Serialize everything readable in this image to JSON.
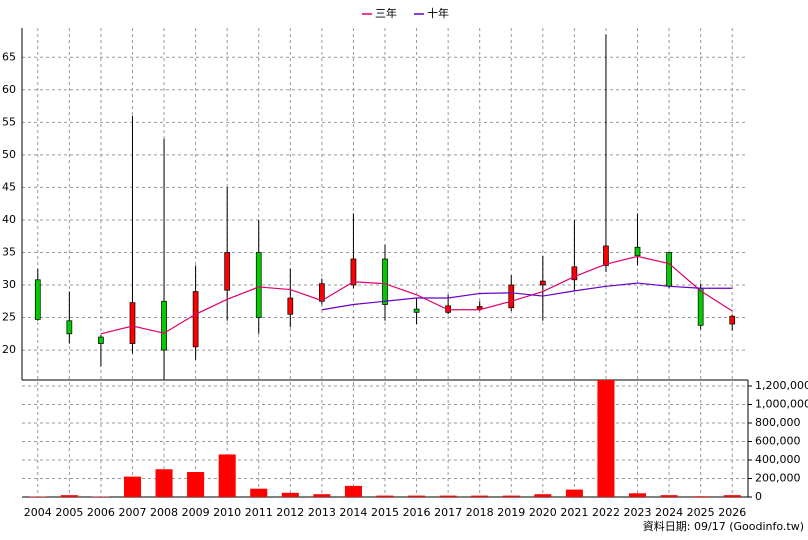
{
  "chart_data": {
    "type": "candlestick",
    "categories": [
      "2004",
      "2005",
      "2006",
      "2007",
      "2008",
      "2009",
      "2010",
      "2011",
      "2012",
      "2013",
      "2014",
      "2015",
      "2016",
      "2017",
      "2018",
      "2019",
      "2020",
      "2021",
      "2022",
      "2023",
      "2024",
      "2025",
      "2026"
    ],
    "open": [
      30.8,
      24.5,
      22,
      21,
      27.5,
      20.5,
      29.2,
      35,
      25.5,
      27.5,
      30,
      34,
      26.3,
      25.8,
      26.3,
      26.5,
      30,
      30.8,
      33,
      35.8,
      35,
      29.5,
      24
    ],
    "close": [
      24.7,
      22.5,
      21,
      27.3,
      20,
      29,
      35,
      25,
      28,
      30.2,
      34,
      27,
      25.8,
      26.8,
      26.7,
      30,
      30.6,
      32.8,
      36,
      34.5,
      29.8,
      23.8,
      25.2
    ],
    "high": [
      32.5,
      29,
      22.3,
      56,
      52.5,
      33,
      45,
      40,
      32.5,
      31,
      41,
      36.2,
      28,
      28.5,
      27.5,
      31.5,
      34.5,
      40,
      68.5,
      41,
      35,
      30.2,
      25.5
    ],
    "low": [
      24.5,
      21,
      17.5,
      19.5,
      15.5,
      18.5,
      24.5,
      22.5,
      23.5,
      27,
      29.5,
      24.5,
      24,
      25.5,
      26,
      26,
      24.5,
      29,
      32,
      33,
      29.5,
      23.2,
      23
    ],
    "up_color": "#ff0000",
    "down_color": "#00cc00",
    "series": [
      {
        "name": "三年",
        "color": "#e0006a",
        "values": [
          null,
          null,
          22.5,
          23.7,
          22.6,
          25.5,
          27.8,
          29.7,
          29.3,
          27.6,
          30.5,
          30.2,
          28.5,
          26.2,
          26.2,
          27.5,
          29,
          31.3,
          33.2,
          34.4,
          33.3,
          29.1,
          26
        ]
      },
      {
        "name": "十年",
        "color": "#6a00c8",
        "values": [
          null,
          null,
          null,
          null,
          null,
          null,
          null,
          null,
          null,
          26.2,
          27,
          27.5,
          28,
          28,
          28.7,
          28.8,
          28.3,
          29.1,
          29.8,
          30.3,
          29.8,
          29.5,
          29.5
        ]
      }
    ],
    "ylim": [
      15.4,
      69.5
    ],
    "yticks": [
      20,
      25,
      30,
      35,
      40,
      45,
      50,
      55,
      60,
      65
    ],
    "grid": true,
    "volume": {
      "color": "#ff0000",
      "values": [
        5000,
        20000,
        5000,
        220000,
        300000,
        270000,
        460000,
        90000,
        45000,
        30000,
        120000,
        15000,
        15000,
        15000,
        15000,
        15000,
        30000,
        80000,
        1265000,
        40000,
        20000,
        8000,
        20000
      ],
      "ylim": [
        0,
        1265000
      ],
      "yticks": [
        0,
        {
          "value": 200000,
          "label": "200,000"
        },
        {
          "value": 400000,
          "label": "400,000"
        },
        {
          "value": 600000,
          "label": "600,000"
        },
        {
          "value": 800000,
          "label": "800,000"
        },
        {
          "value": 1000000,
          "label": "1,000,000"
        },
        {
          "value": 1200000,
          "label": "1,200,000"
        }
      ]
    },
    "footer": "資料日期: 09/17  (Goodinfo.tw)"
  }
}
